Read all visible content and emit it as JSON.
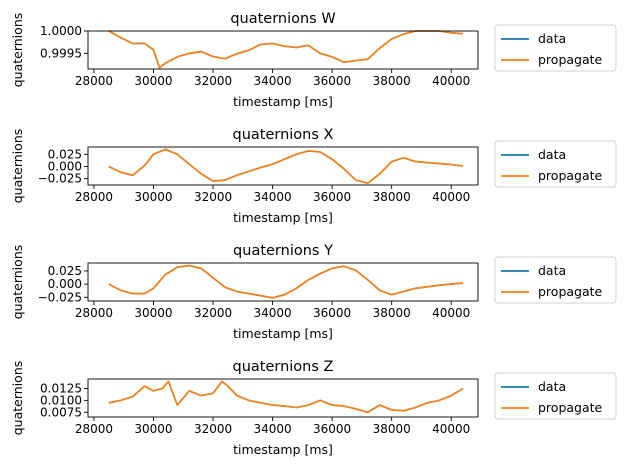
{
  "chart_data": [
    {
      "type": "line",
      "title": "quaternions W",
      "xlabel": "timestamp [ms]",
      "ylabel": "quaternions",
      "xlim": [
        27800,
        40900
      ],
      "ylim": [
        0.99915,
        1.0
      ],
      "x_ticks": [
        "28000",
        "30000",
        "32000",
        "34000",
        "36000",
        "38000",
        "40000"
      ],
      "y_ticks": [
        "1.0000",
        "0.9995"
      ],
      "y_tick_values": [
        1.0,
        0.9995
      ],
      "legend": [
        "data",
        "propagate"
      ],
      "legend_position": "outside-right",
      "series": [
        {
          "name": "data",
          "color": "#1f77b4",
          "x": [
            28500,
            28900,
            29300,
            29700,
            30000,
            30200,
            30400,
            30800,
            31200,
            31600,
            32000,
            32400,
            32800,
            33200,
            33600,
            34000,
            34400,
            34800,
            35200,
            35600,
            36000,
            36400,
            36800,
            37200,
            37600,
            38000,
            38400,
            38800,
            39200,
            39600,
            40000,
            40400
          ],
          "y": [
            1.0,
            0.99985,
            0.99972,
            0.99972,
            0.99958,
            0.99918,
            0.99928,
            0.99942,
            0.9995,
            0.99954,
            0.99943,
            0.99938,
            0.99949,
            0.99957,
            0.9997,
            0.99972,
            0.99966,
            0.99963,
            0.99968,
            0.9995,
            0.99942,
            0.9993,
            0.99934,
            0.99937,
            0.99962,
            0.99982,
            0.99993,
            1.0,
            1.0,
            1.0,
            0.99996,
            0.99994
          ]
        },
        {
          "name": "propagate",
          "color": "#ff7f0e",
          "x": [
            28500,
            28900,
            29300,
            29700,
            30000,
            30200,
            30400,
            30800,
            31200,
            31600,
            32000,
            32400,
            32800,
            33200,
            33600,
            34000,
            34400,
            34800,
            35200,
            35600,
            36000,
            36400,
            36800,
            37200,
            37600,
            38000,
            38400,
            38800,
            39200,
            39600,
            40000,
            40400
          ],
          "y": [
            1.0,
            0.99985,
            0.99972,
            0.99972,
            0.99958,
            0.99918,
            0.99928,
            0.99942,
            0.9995,
            0.99954,
            0.99943,
            0.99938,
            0.99949,
            0.99957,
            0.9997,
            0.99972,
            0.99966,
            0.99963,
            0.99968,
            0.9995,
            0.99942,
            0.9993,
            0.99934,
            0.99937,
            0.99962,
            0.99982,
            0.99993,
            1.0,
            1.0,
            1.0,
            0.99996,
            0.99994
          ]
        }
      ]
    },
    {
      "type": "line",
      "title": "quaternions X",
      "xlabel": "timestamp [ms]",
      "ylabel": "quaternions",
      "xlim": [
        27800,
        40900
      ],
      "ylim": [
        -0.038,
        0.04
      ],
      "x_ticks": [
        "28000",
        "30000",
        "32000",
        "34000",
        "36000",
        "38000",
        "40000"
      ],
      "y_ticks": [
        "0.025",
        "0.000",
        "−0.025"
      ],
      "y_tick_values": [
        0.025,
        0.0,
        -0.025
      ],
      "legend": [
        "data",
        "propagate"
      ],
      "legend_position": "outside-right",
      "series": [
        {
          "name": "data",
          "color": "#1f77b4",
          "x": [
            28500,
            28900,
            29300,
            29700,
            30000,
            30400,
            30800,
            31200,
            31600,
            32000,
            32400,
            32800,
            33200,
            33600,
            34000,
            34400,
            34800,
            35200,
            35600,
            36000,
            36400,
            36800,
            37200,
            37600,
            38000,
            38400,
            38800,
            39200,
            39600,
            40000,
            40400
          ],
          "y": [
            0.0,
            -0.012,
            -0.018,
            0.002,
            0.025,
            0.035,
            0.025,
            0.005,
            -0.015,
            -0.03,
            -0.028,
            -0.018,
            -0.01,
            -0.002,
            0.005,
            0.015,
            0.025,
            0.032,
            0.03,
            0.015,
            -0.005,
            -0.028,
            -0.034,
            -0.015,
            0.01,
            0.018,
            0.01,
            0.008,
            0.006,
            0.004,
            0.001
          ]
        },
        {
          "name": "propagate",
          "color": "#ff7f0e",
          "x": [
            28500,
            28900,
            29300,
            29700,
            30000,
            30400,
            30800,
            31200,
            31600,
            32000,
            32400,
            32800,
            33200,
            33600,
            34000,
            34400,
            34800,
            35200,
            35600,
            36000,
            36400,
            36800,
            37200,
            37600,
            38000,
            38400,
            38800,
            39200,
            39600,
            40000,
            40400
          ],
          "y": [
            0.0,
            -0.012,
            -0.018,
            0.002,
            0.025,
            0.035,
            0.025,
            0.005,
            -0.015,
            -0.03,
            -0.028,
            -0.018,
            -0.01,
            -0.002,
            0.005,
            0.015,
            0.025,
            0.032,
            0.03,
            0.015,
            -0.005,
            -0.028,
            -0.034,
            -0.015,
            0.01,
            0.018,
            0.01,
            0.008,
            0.006,
            0.004,
            0.001
          ]
        }
      ]
    },
    {
      "type": "line",
      "title": "quaternions Y",
      "xlabel": "timestamp [ms]",
      "ylabel": "quaternions",
      "xlim": [
        27800,
        40900
      ],
      "ylim": [
        -0.032,
        0.04
      ],
      "x_ticks": [
        "28000",
        "30000",
        "32000",
        "34000",
        "36000",
        "38000",
        "40000"
      ],
      "y_ticks": [
        "0.025",
        "0.000",
        "−0.025"
      ],
      "y_tick_values": [
        0.025,
        0.0,
        -0.025
      ],
      "legend": [
        "data",
        "propagate"
      ],
      "legend_position": "outside-right",
      "series": [
        {
          "name": "data",
          "color": "#1f77b4",
          "x": [
            28500,
            28900,
            29300,
            29700,
            30000,
            30400,
            30800,
            31200,
            31600,
            32000,
            32400,
            32800,
            33200,
            33600,
            34000,
            34400,
            34800,
            35200,
            35600,
            36000,
            36400,
            36800,
            37200,
            37600,
            38000,
            38400,
            38800,
            39200,
            39600,
            40000,
            40400
          ],
          "y": [
            0.0,
            -0.012,
            -0.018,
            -0.018,
            -0.008,
            0.018,
            0.032,
            0.035,
            0.03,
            0.012,
            -0.006,
            -0.014,
            -0.018,
            -0.022,
            -0.026,
            -0.02,
            -0.008,
            0.008,
            0.02,
            0.03,
            0.034,
            0.026,
            0.008,
            -0.012,
            -0.02,
            -0.014,
            -0.008,
            -0.005,
            -0.002,
            0.0,
            0.002
          ]
        },
        {
          "name": "propagate",
          "color": "#ff7f0e",
          "x": [
            28500,
            28900,
            29300,
            29700,
            30000,
            30400,
            30800,
            31200,
            31600,
            32000,
            32400,
            32800,
            33200,
            33600,
            34000,
            34400,
            34800,
            35200,
            35600,
            36000,
            36400,
            36800,
            37200,
            37600,
            38000,
            38400,
            38800,
            39200,
            39600,
            40000,
            40400
          ],
          "y": [
            0.0,
            -0.012,
            -0.018,
            -0.018,
            -0.008,
            0.018,
            0.032,
            0.035,
            0.03,
            0.012,
            -0.006,
            -0.014,
            -0.018,
            -0.022,
            -0.026,
            -0.02,
            -0.008,
            0.008,
            0.02,
            0.03,
            0.034,
            0.026,
            0.008,
            -0.012,
            -0.02,
            -0.014,
            -0.008,
            -0.005,
            -0.002,
            0.0,
            0.002
          ]
        }
      ]
    },
    {
      "type": "line",
      "title": "quaternions Z",
      "xlabel": "timestamp [ms]",
      "ylabel": "quaternions",
      "xlim": [
        27800,
        40900
      ],
      "ylim": [
        0.0065,
        0.0145
      ],
      "x_ticks": [
        "28000",
        "30000",
        "32000",
        "34000",
        "36000",
        "38000",
        "40000"
      ],
      "y_ticks": [
        "0.0125",
        "0.0100",
        "0.0075"
      ],
      "y_tick_values": [
        0.0125,
        0.01,
        0.0075
      ],
      "legend": [
        "data",
        "propagate"
      ],
      "legend_position": "outside-right",
      "series": [
        {
          "name": "data",
          "color": "#1f77b4",
          "x": [
            28500,
            28900,
            29300,
            29700,
            30000,
            30300,
            30500,
            30800,
            31200,
            31600,
            32000,
            32300,
            32500,
            32800,
            33200,
            33600,
            34000,
            34400,
            34800,
            35200,
            35600,
            36000,
            36400,
            36800,
            37200,
            37600,
            38000,
            38400,
            38800,
            39200,
            39600,
            40000,
            40400
          ],
          "y": [
            0.0095,
            0.01,
            0.0108,
            0.013,
            0.012,
            0.0125,
            0.014,
            0.009,
            0.012,
            0.011,
            0.0115,
            0.014,
            0.013,
            0.011,
            0.01,
            0.0095,
            0.009,
            0.0088,
            0.0085,
            0.009,
            0.01,
            0.009,
            0.0088,
            0.0082,
            0.0075,
            0.009,
            0.008,
            0.0078,
            0.0085,
            0.0095,
            0.01,
            0.011,
            0.0125
          ]
        },
        {
          "name": "propagate",
          "color": "#ff7f0e",
          "x": [
            28500,
            28900,
            29300,
            29700,
            30000,
            30300,
            30500,
            30800,
            31200,
            31600,
            32000,
            32300,
            32500,
            32800,
            33200,
            33600,
            34000,
            34400,
            34800,
            35200,
            35600,
            36000,
            36400,
            36800,
            37200,
            37600,
            38000,
            38400,
            38800,
            39200,
            39600,
            40000,
            40400
          ],
          "y": [
            0.0095,
            0.01,
            0.0108,
            0.013,
            0.012,
            0.0125,
            0.014,
            0.009,
            0.012,
            0.011,
            0.0115,
            0.014,
            0.013,
            0.011,
            0.01,
            0.0095,
            0.009,
            0.0088,
            0.0085,
            0.009,
            0.01,
            0.009,
            0.0088,
            0.0082,
            0.0075,
            0.009,
            0.008,
            0.0078,
            0.0085,
            0.0095,
            0.01,
            0.011,
            0.0125
          ]
        }
      ]
    }
  ]
}
